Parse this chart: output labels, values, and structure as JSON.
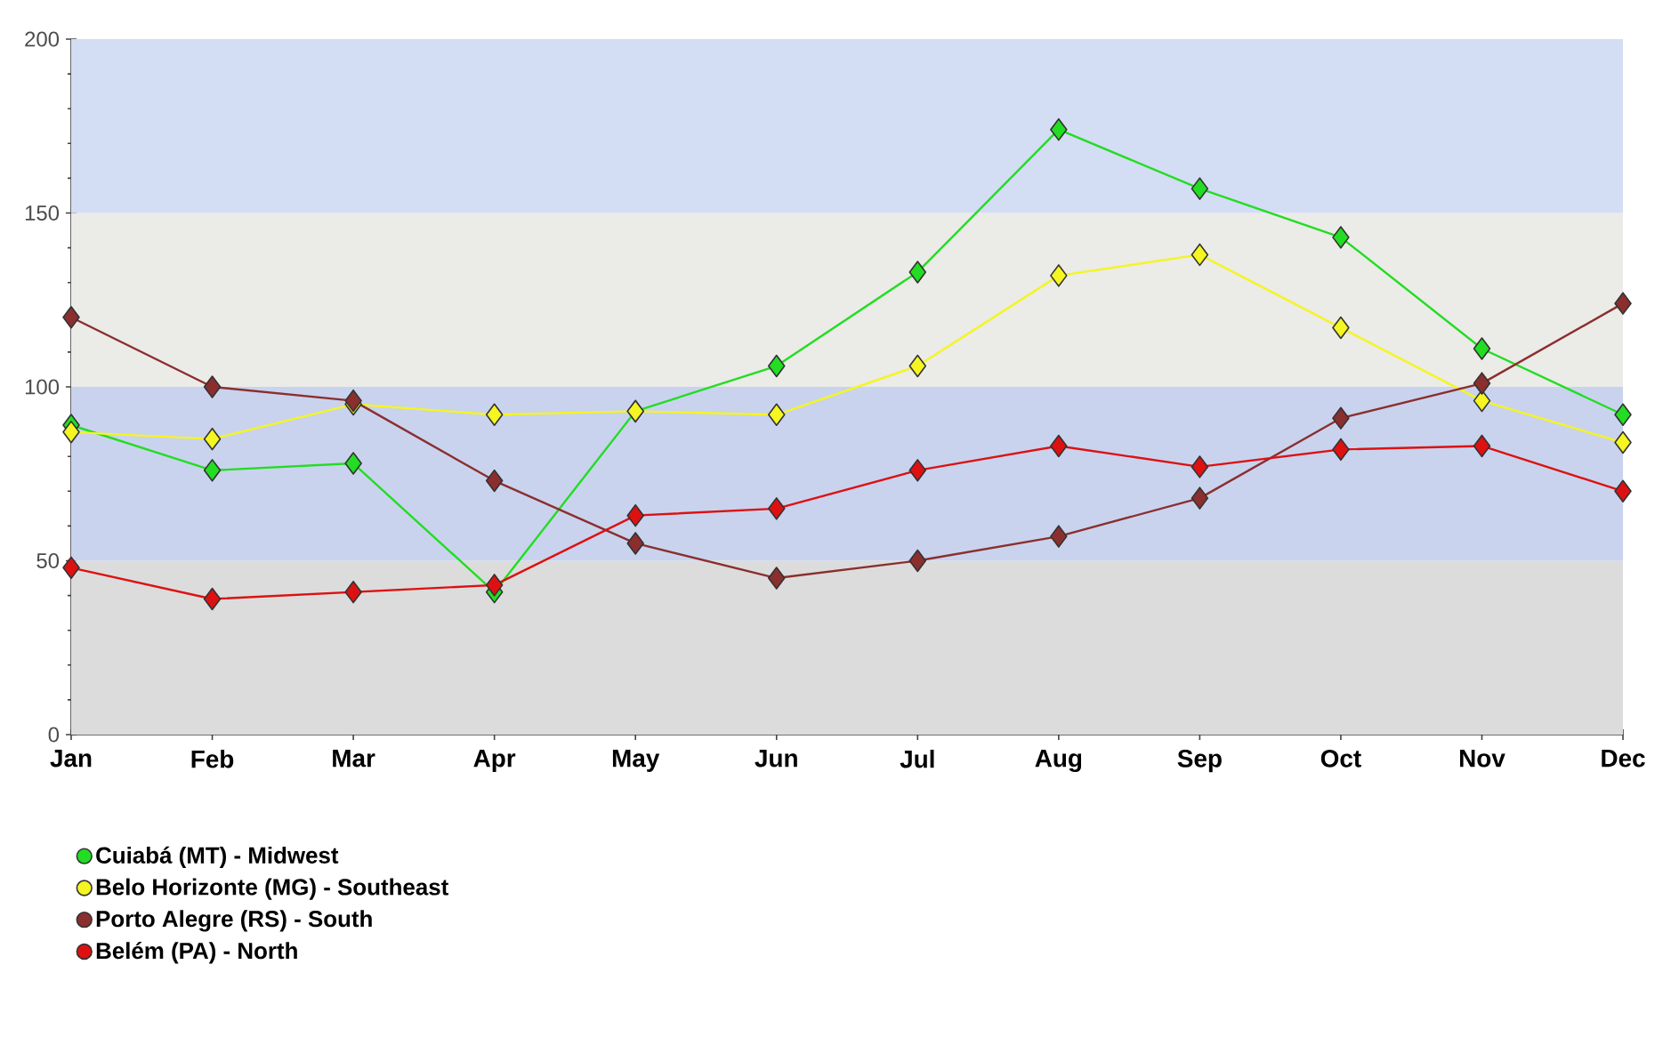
{
  "chart_data": {
    "type": "line",
    "categories": [
      "Jan",
      "Feb",
      "Mar",
      "Apr",
      "May",
      "Jun",
      "Jul",
      "Aug",
      "Sep",
      "Oct",
      "Nov",
      "Dec"
    ],
    "series": [
      {
        "name": "Cuiabá (MT) - Midwest",
        "color": "#22dd22",
        "values": [
          89,
          76,
          78,
          41,
          93,
          106,
          133,
          174,
          157,
          143,
          111,
          92
        ]
      },
      {
        "name": "Belo Horizonte (MG) - Southeast",
        "color": "#f5f522",
        "values": [
          87,
          85,
          95,
          92,
          93,
          92,
          106,
          132,
          138,
          117,
          96,
          84
        ]
      },
      {
        "name": "Porto Alegre (RS) - South",
        "color": "#8b2e2e",
        "values": [
          120,
          100,
          96,
          73,
          55,
          45,
          50,
          57,
          68,
          91,
          101,
          124
        ]
      },
      {
        "name": "Belém (PA) - North",
        "color": "#dd1111",
        "values": [
          48,
          39,
          41,
          43,
          63,
          65,
          76,
          83,
          77,
          82,
          83,
          70
        ]
      }
    ],
    "ylim": [
      0,
      200
    ],
    "yticks": [
      0,
      50,
      100,
      150,
      200
    ],
    "bands": [
      {
        "axis": "y",
        "from": 0,
        "to": 50,
        "color": "#dcdcdc"
      },
      {
        "axis": "y",
        "from": 50,
        "to": 100,
        "color": "#c9d3ee"
      },
      {
        "axis": "y",
        "from": 100,
        "to": 150,
        "color": "#ebebe8"
      },
      {
        "axis": "y",
        "from": 150,
        "to": 200,
        "color": "#d3ddf3"
      }
    ],
    "legend": "bottom left",
    "marker": "diamond",
    "grid": false
  }
}
